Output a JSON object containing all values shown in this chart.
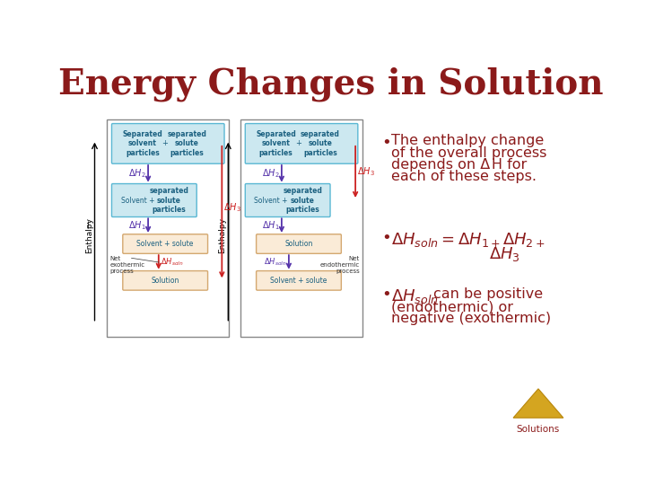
{
  "title": "Energy Changes in Solution",
  "title_color": "#8B1A1A",
  "title_fontsize": 28,
  "bg_color": "#FFFFFF",
  "bullet_color": "#8B1A1A",
  "diagram_border_color": "#888888",
  "box_fill_light_blue": "#cce8f0",
  "box_fill_light_tan": "#faebd7",
  "box_border_blue": "#5bb8d4",
  "box_border_tan": "#d4a870",
  "text_blue": "#1a6080",
  "arrow_blue_up": "#5533aa",
  "arrow_red_down": "#cc2222",
  "solutions_color": "#8B1A1A",
  "enthalpy_label": "Enthalpy —",
  "diag1_boxes": {
    "top": {
      "label": "Separated\nsolvent    +  separated\nparticles      solute\n               particles"
    },
    "mid": {
      "label": "Solvent +  separated\n             solute\n             particles"
    },
    "bot": {
      "label": "Solvent + solute"
    },
    "sol": {
      "label": "Solution"
    }
  },
  "diag2_boxes": {
    "top": {
      "label": "Separated\nsolvent    +  separated\nparticles      solute\n               particles"
    },
    "mid": {
      "label": "Solvent +  separated\n             solute\n             particles"
    },
    "bot": {
      "label": "Solution"
    },
    "sol": {
      "label": "Solvent + solute"
    }
  }
}
